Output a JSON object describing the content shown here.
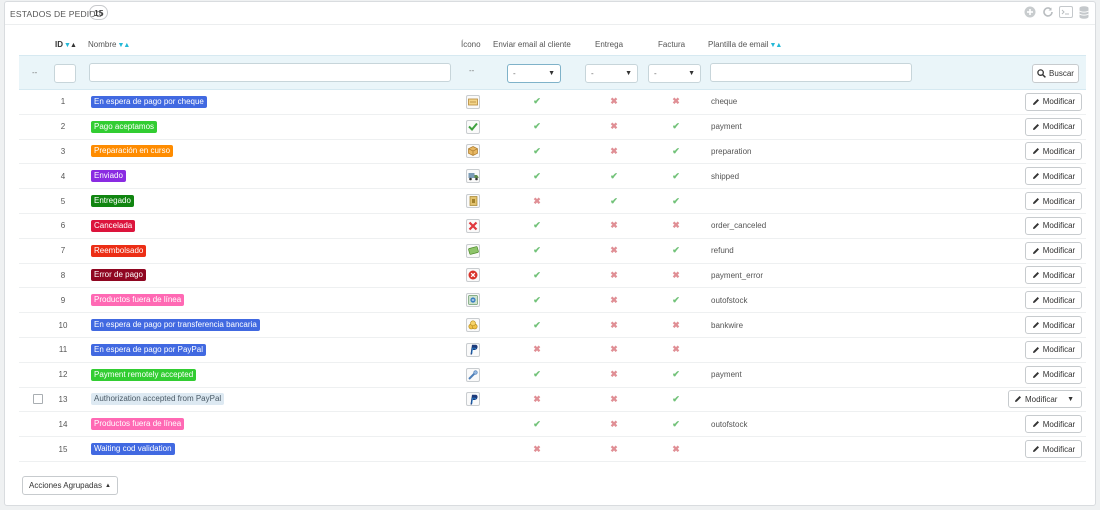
{
  "panel": {
    "title": "ESTADOS DE PEDIDO",
    "count": "15"
  },
  "toolbar": {
    "icons": [
      "add-icon",
      "refresh-icon",
      "sql-query-icon",
      "database-icon"
    ]
  },
  "columns": {
    "id": "ID",
    "name": "Nombre",
    "icon": "Ícono",
    "send_email": "Enviar email al cliente",
    "delivery": "Entrega",
    "invoice": "Factura",
    "template": "Plantilla de email"
  },
  "filters": {
    "id_placeholder": "",
    "name_placeholder": "",
    "template_placeholder": "",
    "dash": "--",
    "icon_dash": "--",
    "select_value": "-",
    "search_label": "Buscar"
  },
  "rows": [
    {
      "id": "1",
      "name": "En espera de pago por cheque",
      "color": "#4169e1",
      "icon": "check-payment-icon",
      "email": true,
      "delivery": false,
      "invoice": false,
      "template": "cheque",
      "checkbox": false
    },
    {
      "id": "2",
      "name": "Pago aceptamos",
      "color": "#32cd32",
      "icon": "payment-accepted-icon",
      "email": true,
      "delivery": false,
      "invoice": true,
      "template": "payment",
      "checkbox": false
    },
    {
      "id": "3",
      "name": "Preparación en curso",
      "color": "#ff8c00",
      "icon": "package-icon",
      "email": true,
      "delivery": false,
      "invoice": true,
      "template": "preparation",
      "checkbox": false
    },
    {
      "id": "4",
      "name": "Enviado",
      "color": "#8a2be2",
      "icon": "truck-icon",
      "email": true,
      "delivery": true,
      "invoice": true,
      "template": "shipped",
      "checkbox": false
    },
    {
      "id": "5",
      "name": "Entregado",
      "color": "#108510",
      "icon": "delivered-icon",
      "email": false,
      "delivery": true,
      "invoice": true,
      "template": "",
      "checkbox": false
    },
    {
      "id": "6",
      "name": "Cancelada",
      "color": "#dc143c",
      "icon": "canceled-icon",
      "email": true,
      "delivery": false,
      "invoice": false,
      "template": "order_canceled",
      "checkbox": false
    },
    {
      "id": "7",
      "name": "Reembolsado",
      "color": "#ec2e15",
      "icon": "refund-icon",
      "email": true,
      "delivery": false,
      "invoice": true,
      "template": "refund",
      "checkbox": false
    },
    {
      "id": "8",
      "name": "Error de pago",
      "color": "#8f0621",
      "icon": "payment-error-icon",
      "email": true,
      "delivery": false,
      "invoice": false,
      "template": "payment_error",
      "checkbox": false
    },
    {
      "id": "9",
      "name": "Productos fuera de línea",
      "color": "#ff69b4",
      "icon": "out-of-stock-icon",
      "email": true,
      "delivery": false,
      "invoice": true,
      "template": "outofstock",
      "checkbox": false
    },
    {
      "id": "10",
      "name": "En espera de pago por transferencia bancaria",
      "color": "#4169e1",
      "icon": "bankwire-icon",
      "email": true,
      "delivery": false,
      "invoice": false,
      "template": "bankwire",
      "checkbox": false
    },
    {
      "id": "11",
      "name": "En espera de pago por PayPal",
      "color": "#4169e1",
      "icon": "paypal-icon",
      "email": false,
      "delivery": false,
      "invoice": false,
      "template": "",
      "checkbox": false
    },
    {
      "id": "12",
      "name": "Payment remotely accepted",
      "color": "#32cd32",
      "icon": "remote-payment-icon",
      "email": true,
      "delivery": false,
      "invoice": true,
      "template": "payment",
      "checkbox": false
    },
    {
      "id": "13",
      "name": "Authorization accepted from PayPal",
      "color": "#dde9f2",
      "light": true,
      "icon": "paypal-icon",
      "email": false,
      "delivery": false,
      "invoice": true,
      "template": "",
      "checkbox": true
    },
    {
      "id": "14",
      "name": "Productos fuera de línea",
      "color": "#ff69b4",
      "icon": "",
      "email": true,
      "delivery": false,
      "invoice": true,
      "template": "outofstock",
      "checkbox": false
    },
    {
      "id": "15",
      "name": "Waiting cod validation",
      "color": "#4169e1",
      "icon": "",
      "email": false,
      "delivery": false,
      "invoice": false,
      "template": "",
      "checkbox": false
    }
  ],
  "actions": {
    "modify_label": "Modificar"
  },
  "bulk_actions": {
    "label": "Acciones Agrupadas"
  }
}
